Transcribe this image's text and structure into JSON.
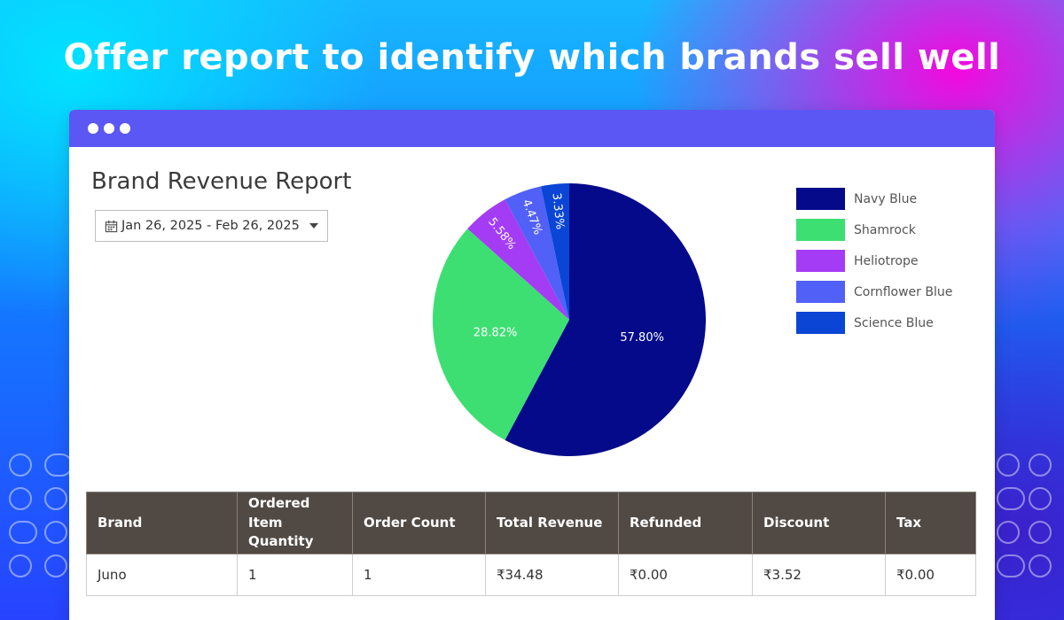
{
  "banner": {
    "headline": "Offer report to identify which brands sell well"
  },
  "report": {
    "title": "Brand Revenue Report",
    "date_range": "Jan 26, 2025 - Feb 26, 2025"
  },
  "chart_data": {
    "type": "pie",
    "slices": [
      {
        "name": "Navy Blue",
        "value": 57.8,
        "label": "57.80%",
        "color": "#050a8a"
      },
      {
        "name": "Shamrock",
        "value": 28.82,
        "label": "28.82%",
        "color": "#3ddf72"
      },
      {
        "name": "Heliotrope",
        "value": 5.58,
        "label": "5.58%",
        "color": "#a43cf5"
      },
      {
        "name": "Cornflower Blue",
        "value": 4.47,
        "label": "4.47%",
        "color": "#5160f7"
      },
      {
        "name": "Science Blue",
        "value": 3.33,
        "label": "3.33%",
        "color": "#0a45d6"
      }
    ],
    "legend_position": "right"
  },
  "table": {
    "headers": [
      "Brand",
      "Ordered Item Quantity",
      "Order Count",
      "Total Revenue",
      "Refunded",
      "Discount",
      "Tax"
    ],
    "rows": [
      [
        "Juno",
        "1",
        "1",
        "₹34.48",
        "₹0.00",
        "₹3.52",
        "₹0.00"
      ]
    ]
  },
  "icons": {
    "date": "calendar-icon",
    "dropdown": "caret-down-icon",
    "window": "window-dots-icon"
  },
  "colors": {
    "titlebar": "#5b57f5",
    "table_header": "#514943"
  }
}
